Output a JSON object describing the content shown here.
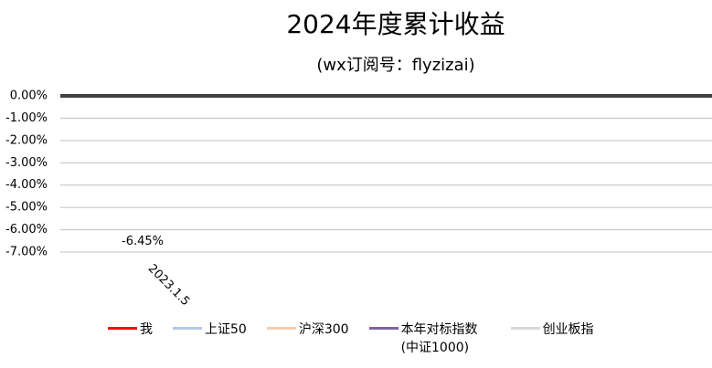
{
  "chart_data": {
    "type": "line",
    "title": "2024年度累计收益",
    "subtitle": "(wx订阅号：flyzizai)",
    "categories": [
      "2023.1.5"
    ],
    "series": [
      {
        "name": "我",
        "color": "#ff0000",
        "values": [
          -6.45
        ],
        "value_labels": [
          "-6.45%"
        ]
      },
      {
        "name": "上证50",
        "color": "#b4c7e7",
        "values": [
          null
        ]
      },
      {
        "name": "沪深300",
        "color": "#f8cbad",
        "values": [
          null
        ]
      },
      {
        "name": "本年对标指数(中证1000)",
        "color": "#8064a2",
        "values": [
          null
        ]
      },
      {
        "name": "创业板指",
        "color": "#d9d9d9",
        "values": [
          null
        ]
      }
    ],
    "ylim": [
      -7,
      0
    ],
    "yticks": [
      {
        "value": 0,
        "label": "0.00%"
      },
      {
        "value": -1,
        "label": "-1.00%"
      },
      {
        "value": -2,
        "label": "-2.00%"
      },
      {
        "value": -3,
        "label": "-3.00%"
      },
      {
        "value": -4,
        "label": "-4.00%"
      },
      {
        "value": -5,
        "label": "-5.00%"
      },
      {
        "value": -6,
        "label": "-6.00%"
      },
      {
        "value": -7,
        "label": "-7.00%"
      }
    ],
    "grid": true
  }
}
